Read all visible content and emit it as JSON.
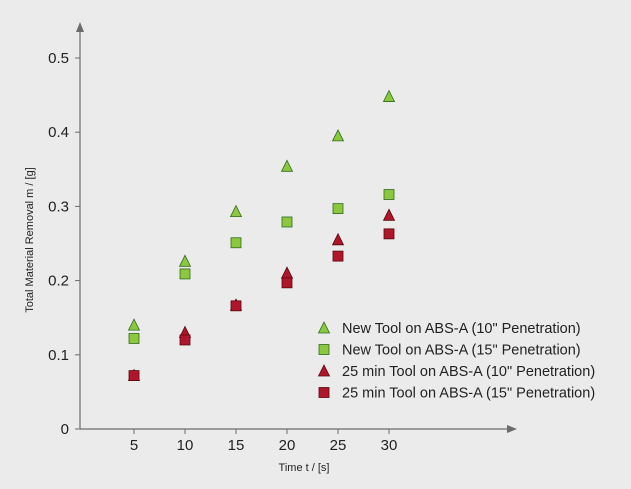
{
  "chart_data": {
    "type": "scatter",
    "title": "",
    "xlabel": "Time t / [s]",
    "ylabel": "Total Material Removal m / [g]",
    "x": [
      5,
      10,
      15,
      20,
      25,
      30
    ],
    "xlim": [
      0,
      36.5
    ],
    "ylim": [
      0,
      0.55
    ],
    "xticks": [
      "5",
      "10",
      "15",
      "20",
      "25",
      "30"
    ],
    "yticks": [
      "0",
      "0.1",
      "0.2",
      "0.3",
      "0.4",
      "0.5"
    ],
    "grid": false,
    "legend_position": "bottom-right",
    "series": [
      {
        "name": "New Tool on ABS-A (10\" Penetration)",
        "marker": "triangle",
        "color": "#8dc63f",
        "stroke": "#2f6b1f",
        "values": [
          0.14,
          0.226,
          0.293,
          0.354,
          0.395,
          0.448
        ]
      },
      {
        "name": "New Tool on ABS-A (15\" Penetration)",
        "marker": "square",
        "color": "#8dc63f",
        "stroke": "#2f6b1f",
        "values": [
          0.122,
          0.209,
          0.251,
          0.279,
          0.297,
          0.316
        ]
      },
      {
        "name": "25 min Tool on ABS-A (10\" Penetration)",
        "marker": "triangle",
        "color": "#b0162b",
        "stroke": "#5a0710",
        "values": [
          0.072,
          0.13,
          0.167,
          0.21,
          0.255,
          0.288
        ]
      },
      {
        "name": "25 min Tool on ABS-A (15\" Penetration)",
        "marker": "square",
        "color": "#b0162b",
        "stroke": "#5a0710",
        "values": [
          0.072,
          0.12,
          0.166,
          0.197,
          0.233,
          0.263
        ]
      }
    ]
  }
}
